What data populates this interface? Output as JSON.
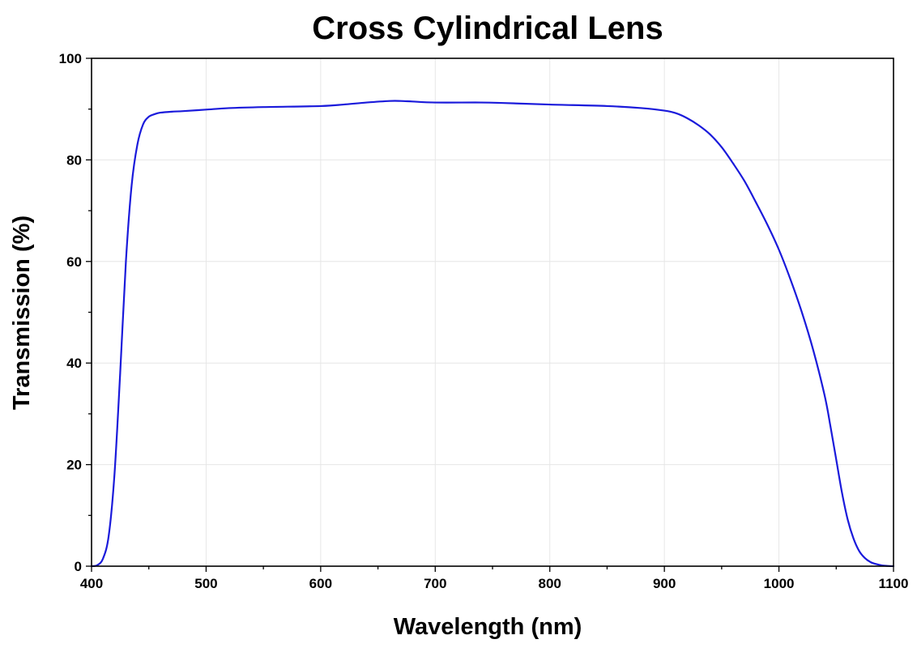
{
  "chart_data": {
    "type": "line",
    "title": "Cross Cylindrical Lens",
    "xlabel": "Wavelength (nm)",
    "ylabel": "Transmission (%)",
    "xlim": [
      400,
      1100
    ],
    "ylim": [
      0,
      100
    ],
    "x_ticks": [
      400,
      500,
      600,
      700,
      800,
      900,
      1000,
      1100
    ],
    "x_tick_labels": [
      "400",
      "500",
      "600",
      "700",
      "800",
      "900",
      "1000",
      "1100"
    ],
    "y_ticks": [
      0,
      20,
      40,
      60,
      80,
      100
    ],
    "y_tick_labels": [
      "0",
      "20",
      "40",
      "60",
      "80",
      "100"
    ],
    "grid": true,
    "legend": "none",
    "series": [
      {
        "color": "#1a1adb",
        "x": [
          400,
          405,
          410,
          415,
          420,
          425,
          430,
          435,
          440,
          445,
          450,
          455,
          460,
          470,
          480,
          500,
          520,
          550,
          600,
          620,
          640,
          660,
          670,
          680,
          700,
          740,
          760,
          800,
          850,
          880,
          900,
          910,
          920,
          930,
          940,
          950,
          960,
          970,
          980,
          990,
          1000,
          1010,
          1020,
          1030,
          1040,
          1045,
          1050,
          1055,
          1060,
          1065,
          1070,
          1075,
          1080,
          1085,
          1090,
          1095,
          1100
        ],
        "y": [
          0,
          0.2,
          1.5,
          6,
          18,
          38,
          60,
          75,
          83,
          87,
          88.5,
          89,
          89.3,
          89.5,
          89.6,
          89.9,
          90.2,
          90.4,
          90.6,
          90.9,
          91.3,
          91.6,
          91.6,
          91.5,
          91.3,
          91.3,
          91.2,
          90.9,
          90.6,
          90.2,
          89.7,
          89.2,
          88.2,
          86.8,
          85,
          82.5,
          79.3,
          75.8,
          71.6,
          67.2,
          62.3,
          56.5,
          50,
          42.5,
          33.5,
          27.5,
          21,
          14.5,
          9.2,
          5.5,
          3,
          1.6,
          0.8,
          0.4,
          0.15,
          0.05,
          0
        ]
      }
    ]
  }
}
